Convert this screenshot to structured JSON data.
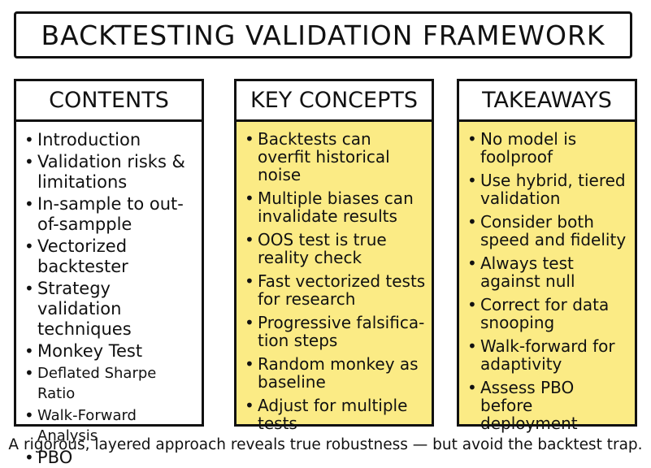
{
  "title": "BACKTESTING VALIDATION FRAMEWORK",
  "colors": {
    "highlight_yellow": "#fbeb85",
    "ink": "#111111",
    "background": "#ffffff"
  },
  "contents": {
    "heading": "CONTENTS",
    "items": [
      "Introduction",
      "Validation risks & limitations",
      "In-sample to out-of-sampple",
      "Vectorized backtester",
      "Strategy validation techniques",
      "Monkey Test",
      "Deflated Sharpe Ratio",
      "Walk-Forward Analysis",
      "PBO"
    ]
  },
  "key_concepts": {
    "heading": "KEY CONCEPTS",
    "items": [
      "Backtests can overfit historical noise",
      "Multiple biases can invalidate results",
      "OOS test is true reality check",
      "Fast vectorized tests for research",
      "Progressive falsifica-tion steps",
      "Random monkey as baseline",
      "Adjust for multiple tests"
    ]
  },
  "takeaways": {
    "heading": "TAKEAWAYS",
    "items": [
      "No model is foolproof",
      "Use hybrid, tiered validation",
      "Consider both speed and fidelity",
      "Always test against null",
      "Correct for data snooping",
      "Walk-forward for adaptivity",
      "Assess PBO before deployment"
    ]
  },
  "footer": "A rigorous, layered approach reveals true robustness — but avoid the backtest trap."
}
